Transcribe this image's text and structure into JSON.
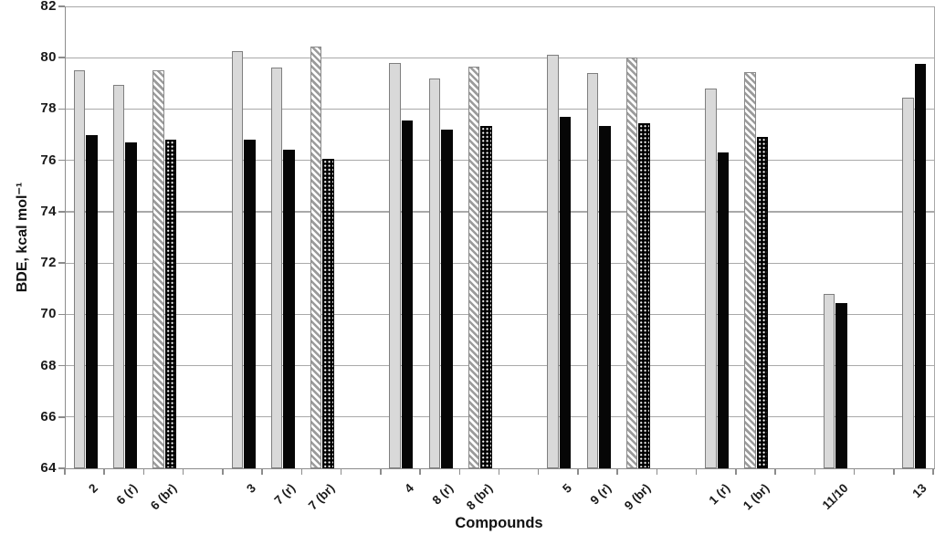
{
  "chart_data": {
    "type": "bar",
    "title": "",
    "xlabel": "Compounds",
    "ylabel": "BDE, kcal mol⁻¹",
    "ylim": [
      64,
      82
    ],
    "yticks": [
      64,
      66,
      68,
      70,
      72,
      74,
      76,
      78,
      80,
      82
    ],
    "grid": "horizontal",
    "legend": "none",
    "categories": [
      "2",
      "6 (r)",
      "6 (br)",
      "3",
      "7 (r)",
      "7 (br)",
      "4",
      "8 (r)",
      "8 (br)",
      "5",
      "9 (r)",
      "9 (br)",
      "1 (r)",
      "1 (br)",
      "11/10",
      "13"
    ],
    "series": [
      {
        "name": "gray",
        "values": [
          79.5,
          78.95,
          79.5,
          80.25,
          79.6,
          80.45,
          79.8,
          79.2,
          79.65,
          80.1,
          79.4,
          80.0,
          78.8,
          79.45,
          70.8,
          78.45
        ]
      },
      {
        "name": "black",
        "values": [
          77.0,
          76.7,
          76.8,
          76.8,
          76.4,
          76.05,
          77.55,
          77.2,
          77.35,
          77.7,
          77.35,
          77.45,
          76.3,
          76.9,
          70.45,
          79.75
        ]
      }
    ],
    "patterned_categories": [
      "6 (br)",
      "7 (br)",
      "8 (br)",
      "9 (br)",
      "1 (br)"
    ],
    "category_slots": [
      0,
      1,
      2,
      4,
      5,
      6,
      8,
      9,
      10,
      12,
      13,
      14,
      16,
      17,
      19,
      21
    ],
    "slot_count": 22,
    "colors": {
      "series1_fill": "#d9d9d9",
      "series1_border": "#7f7f7f",
      "series2_fill": "#060606",
      "hatch_stripe": "#9b9b9b",
      "gridline": "#a9a9a9",
      "axis": "#8c8c8c",
      "text": "#1a1a1a"
    }
  }
}
